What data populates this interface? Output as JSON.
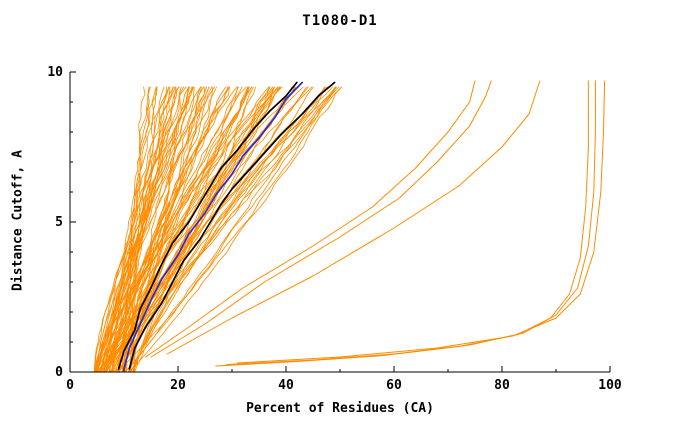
{
  "chart_data": {
    "type": "line",
    "title": "T1080-D1",
    "xlabel": "Percent of Residues (CA)",
    "ylabel": "Distance Cutoff, A",
    "xlim": [
      0,
      100
    ],
    "ylim": [
      0,
      10
    ],
    "x_ticks": [
      0,
      20,
      40,
      60,
      80,
      100
    ],
    "y_ticks": [
      0,
      5,
      10
    ],
    "x_minor_step": 10,
    "y_minor_step": 1,
    "grid": false,
    "legend": "none",
    "colors": {
      "ensemble": "#ff8c00",
      "highlight": "#000000",
      "reference": "#2b2bcc",
      "axis": "#000000",
      "background": "#ffffff"
    },
    "ensemble": {
      "description": "bundle of per-model accuracy curves (percent of CA residues under distance cutoff)",
      "count": 95,
      "seed": 1080,
      "start_x_range": [
        4.5,
        12
      ],
      "end_x_range": [
        13,
        52
      ],
      "exponent_range": [
        0.85,
        1.45
      ],
      "end_y": 9.7,
      "noise": 0.55
    },
    "outlier_series": [
      {
        "name": "outlier-low-sweep-1",
        "points": [
          [
            29,
            0.25
          ],
          [
            45,
            0.4
          ],
          [
            60,
            0.6
          ],
          [
            74,
            0.9
          ],
          [
            84,
            1.3
          ],
          [
            90,
            1.9
          ],
          [
            94,
            2.8
          ],
          [
            96,
            4.2
          ],
          [
            97,
            6.0
          ],
          [
            97.3,
            8.0
          ],
          [
            97.3,
            9.7
          ]
        ]
      },
      {
        "name": "outlier-low-sweep-2",
        "points": [
          [
            31,
            0.3
          ],
          [
            50,
            0.5
          ],
          [
            68,
            0.8
          ],
          [
            82,
            1.2
          ],
          [
            90,
            1.8
          ],
          [
            94.5,
            2.6
          ],
          [
            97,
            4.0
          ],
          [
            98.3,
            6.0
          ],
          [
            98.8,
            8.0
          ],
          [
            99,
            9.7
          ]
        ]
      },
      {
        "name": "outlier-low-sweep-3",
        "points": [
          [
            27,
            0.2
          ],
          [
            42,
            0.35
          ],
          [
            58,
            0.55
          ],
          [
            72,
            0.85
          ],
          [
            83,
            1.25
          ],
          [
            89,
            1.8
          ],
          [
            92.5,
            2.6
          ],
          [
            94.5,
            3.8
          ],
          [
            95.5,
            5.5
          ],
          [
            96,
            7.5
          ],
          [
            96,
            9.7
          ]
        ]
      },
      {
        "name": "outlier-mid-1",
        "points": [
          [
            14,
            0.5
          ],
          [
            22,
            1.5
          ],
          [
            32,
            2.8
          ],
          [
            45,
            4.2
          ],
          [
            56,
            5.5
          ],
          [
            64,
            6.8
          ],
          [
            70,
            8.0
          ],
          [
            74,
            9.0
          ],
          [
            75,
            9.7
          ]
        ]
      },
      {
        "name": "outlier-mid-2",
        "points": [
          [
            15,
            0.5
          ],
          [
            25,
            1.6
          ],
          [
            36,
            3.0
          ],
          [
            50,
            4.5
          ],
          [
            61,
            5.8
          ],
          [
            68,
            7.0
          ],
          [
            74,
            8.2
          ],
          [
            77,
            9.2
          ],
          [
            78,
            9.7
          ]
        ]
      },
      {
        "name": "outlier-mid-3",
        "points": [
          [
            18,
            0.6
          ],
          [
            30,
            1.8
          ],
          [
            45,
            3.2
          ],
          [
            60,
            4.8
          ],
          [
            72,
            6.2
          ],
          [
            80,
            7.5
          ],
          [
            85,
            8.6
          ],
          [
            87,
            9.7
          ]
        ]
      }
    ],
    "highlight_series": [
      {
        "name": "highlight-black-1",
        "points": [
          [
            9,
            0.1
          ],
          [
            10,
            0.7
          ],
          [
            12,
            1.4
          ],
          [
            13,
            2.1
          ],
          [
            15,
            2.8
          ],
          [
            17,
            3.6
          ],
          [
            19,
            4.3
          ],
          [
            22,
            5.0
          ],
          [
            24,
            5.6
          ],
          [
            26,
            6.2
          ],
          [
            28,
            6.8
          ],
          [
            31,
            7.4
          ],
          [
            34,
            8.1
          ],
          [
            37,
            8.7
          ],
          [
            40,
            9.2
          ],
          [
            42,
            9.65
          ]
        ]
      },
      {
        "name": "highlight-black-2",
        "points": [
          [
            11,
            0.1
          ],
          [
            12,
            0.8
          ],
          [
            14,
            1.5
          ],
          [
            17,
            2.3
          ],
          [
            19,
            3.0
          ],
          [
            21,
            3.7
          ],
          [
            24,
            4.4
          ],
          [
            26,
            5.0
          ],
          [
            28,
            5.6
          ],
          [
            30,
            6.1
          ],
          [
            33,
            6.7
          ],
          [
            36,
            7.3
          ],
          [
            39,
            7.9
          ],
          [
            43,
            8.6
          ],
          [
            46,
            9.2
          ],
          [
            49,
            9.65
          ]
        ]
      }
    ],
    "reference_series": {
      "name": "reference-blue",
      "points": [
        [
          10,
          0.1
        ],
        [
          11,
          0.8
        ],
        [
          13,
          1.6
        ],
        [
          15,
          2.4
        ],
        [
          17,
          3.1
        ],
        [
          20,
          3.9
        ],
        [
          22,
          4.6
        ],
        [
          25,
          5.3
        ],
        [
          27,
          5.9
        ],
        [
          30,
          6.6
        ],
        [
          32,
          7.2
        ],
        [
          35,
          7.8
        ],
        [
          38,
          8.5
        ],
        [
          40,
          9.1
        ],
        [
          43,
          9.65
        ]
      ]
    }
  }
}
